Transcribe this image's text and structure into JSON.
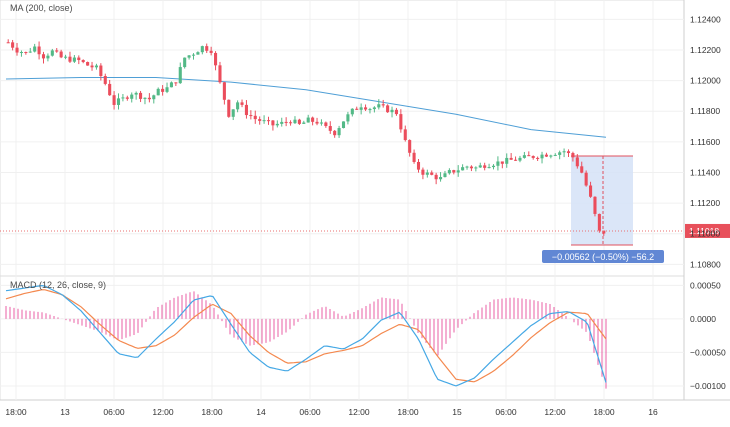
{
  "chart_data": [
    {
      "type": "candlestick",
      "title": "MA (200, close)",
      "y_axis": {
        "ticks": [
          "1.12400",
          "1.12200",
          "1.12000",
          "1.11800",
          "1.11600",
          "1.11400",
          "1.11200",
          "1.11000",
          "1.10800"
        ],
        "ylim": [
          1.1075,
          1.125
        ]
      },
      "x_axis": {
        "ticks": [
          "18:00",
          "13",
          "06:00",
          "12:00",
          "18:00",
          "14",
          "06:00",
          "12:00",
          "18:00",
          "15",
          "06:00",
          "12:00",
          "18:00",
          "16"
        ]
      },
      "price_path": [
        1.1225,
        1.122,
        1.1218,
        1.1222,
        1.1216,
        1.1219,
        1.1215,
        1.1214,
        1.1213,
        1.121,
        1.1208,
        1.1198,
        1.1185,
        1.1188,
        1.1192,
        1.119,
        1.1188,
        1.1193,
        1.1195,
        1.12,
        1.1215,
        1.1218,
        1.1222,
        1.122,
        1.1198,
        1.1178,
        1.1186,
        1.1179,
        1.1175,
        1.1173,
        1.1171,
        1.1172,
        1.1174,
        1.1171,
        1.1174,
        1.1173,
        1.1169,
        1.1166,
        1.1174,
        1.118,
        1.1184,
        1.1182,
        1.1183,
        1.1181,
        1.1179,
        1.116,
        1.1145,
        1.114,
        1.1138,
        1.1136,
        1.114,
        1.1142,
        1.1144,
        1.1143,
        1.1145,
        1.1146,
        1.1147,
        1.1148,
        1.1149,
        1.115,
        1.1151,
        1.1152,
        1.1153,
        1.1154,
        1.115,
        1.114,
        1.1123,
        1.1101
      ],
      "ma200": [
        1.1201,
        1.1202,
        1.1202,
        1.1199,
        1.1194,
        1.1186,
        1.1178,
        1.1168,
        1.1163
      ],
      "current_price": "1.11018",
      "measure_label": "−0.00562 (−0.50%) −56.2",
      "colors": {
        "up": "#53b987",
        "down": "#eb4d5c",
        "ma": "#4f9fd6",
        "price_line": "#ea6f6f",
        "measure_fill": "#d5e2f7",
        "measure_label_bg": "#6187d4"
      }
    },
    {
      "type": "macd",
      "title": "MACD (12, 26, close, 9)",
      "y_axis": {
        "ticks": [
          "0.00050",
          "0.0000",
          "−0.00050",
          "−0.00100"
        ],
        "ylim": [
          -0.00115,
          0.00058
        ]
      },
      "macd": [
        0.00042,
        0.00046,
        0.0005,
        0.00036,
        0.00012,
        -0.0002,
        -0.00052,
        -0.00058,
        -0.0003,
        -4e-05,
        0.00028,
        0.00035,
        -8e-05,
        -0.0005,
        -0.00072,
        -0.00078,
        -0.0006,
        -0.0004,
        -0.00045,
        -0.0003,
        -2e-05,
        0.0001,
        -0.0003,
        -0.0009,
        -0.001,
        -0.00088,
        -0.0006,
        -0.00035,
        -0.0001,
        8e-05,
        0.00011,
        -5e-05,
        -0.00095
      ],
      "signal": [
        0.0003,
        0.00038,
        0.00044,
        0.00036,
        0.00018,
        -8e-05,
        -0.00032,
        -0.00044,
        -0.0004,
        -0.00024,
        2e-05,
        0.00022,
        8e-05,
        -0.00025,
        -0.0005,
        -0.00066,
        -0.00064,
        -0.00052,
        -0.00047,
        -0.0004,
        -0.00022,
        -8e-05,
        -0.00016,
        -0.00055,
        -0.0009,
        -0.00094,
        -0.00078,
        -0.00055,
        -0.00028,
        -6e-05,
        0.0001,
        8e-05,
        -0.0003
      ],
      "colors": {
        "macd": "#45a8e5",
        "signal": "#f4894f",
        "histogram": "#e85fa5"
      }
    }
  ]
}
